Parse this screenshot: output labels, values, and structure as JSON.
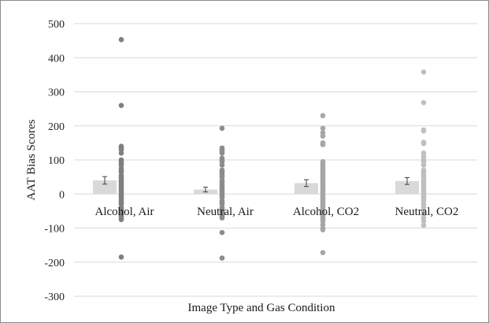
{
  "chart_data": {
    "type": "bar",
    "title": "",
    "xlabel": "Image Type and Gas Condition",
    "ylabel": "AAT Bias Scores",
    "ylim": [
      -300,
      500
    ],
    "yticks": [
      500,
      400,
      300,
      200,
      100,
      0,
      -100,
      -200,
      -300
    ],
    "grid": true,
    "categories": [
      "Alcohol, Air",
      "Neutral, Air",
      "Alcohol, CO2",
      "Neutral, CO2"
    ],
    "means": [
      40,
      13,
      32,
      38
    ],
    "error": [
      11,
      7,
      10,
      10
    ],
    "bar_color": "#d9d9d9",
    "point_colors": [
      "#7f7f7f",
      "#8c8c8c",
      "#a6a6a6",
      "#bfbfbf"
    ],
    "points": [
      [
        453,
        260,
        140,
        135,
        130,
        120,
        100,
        95,
        90,
        85,
        75,
        70,
        65,
        55,
        50,
        45,
        40,
        35,
        30,
        25,
        20,
        15,
        10,
        5,
        0,
        -5,
        -10,
        -15,
        -20,
        -25,
        -30,
        -40,
        -45,
        -50,
        -55,
        -60,
        -65,
        -70,
        -75,
        -185
      ],
      [
        193,
        135,
        130,
        125,
        120,
        105,
        100,
        95,
        85,
        70,
        65,
        60,
        55,
        50,
        40,
        35,
        30,
        25,
        20,
        15,
        10,
        5,
        0,
        -5,
        -10,
        -20,
        -25,
        -30,
        -40,
        -45,
        -50,
        -55,
        -60,
        -65,
        -70,
        -113,
        -188
      ],
      [
        230,
        193,
        180,
        170,
        150,
        145,
        95,
        90,
        85,
        80,
        75,
        70,
        65,
        60,
        55,
        50,
        45,
        40,
        35,
        30,
        25,
        20,
        15,
        10,
        5,
        0,
        -5,
        -10,
        -15,
        -20,
        -25,
        -30,
        -35,
        -40,
        -45,
        -55,
        -60,
        -65,
        -70,
        -75,
        -80,
        -90,
        -100,
        -105,
        -172
      ],
      [
        358,
        268,
        188,
        185,
        152,
        148,
        120,
        110,
        100,
        95,
        85,
        70,
        65,
        60,
        55,
        50,
        45,
        40,
        35,
        30,
        25,
        20,
        15,
        10,
        5,
        0,
        -5,
        -10,
        -15,
        -20,
        -30,
        -40,
        -50,
        -60,
        -70,
        -80,
        -92
      ]
    ]
  }
}
